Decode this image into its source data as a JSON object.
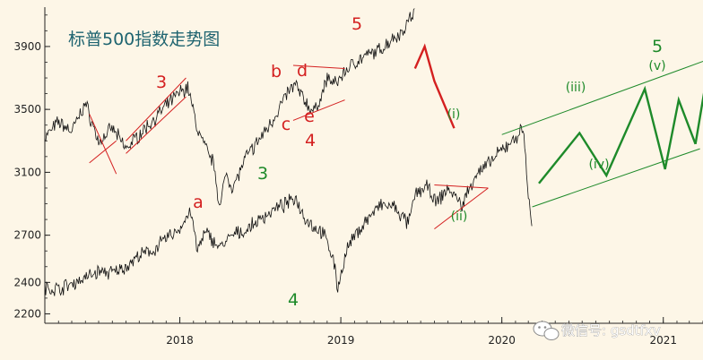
{
  "title": "标普500指数走势图",
  "watermark": "微信号: gsdtfxv",
  "watermark_icon": "wechat-icon",
  "colors": {
    "background": "#fdf6e7",
    "title": "#1e6470",
    "price": "#111111",
    "wave_red": "#d42020",
    "wave_green": "#1e8a2a"
  },
  "chart_data": {
    "type": "line",
    "title": "标普500指数走势图",
    "xlabel": "",
    "ylabel": "",
    "ylim": [
      2140,
      4150
    ],
    "xlim": [
      "2017-03-01",
      "2021-04-01"
    ],
    "yticks": [
      2200,
      2400,
      2700,
      3100,
      3500,
      3900
    ],
    "xticks": [
      "2018",
      "2019",
      "2020",
      "2021"
    ],
    "grid": false,
    "series": [
      {
        "id": "upper",
        "x": [
          "2017-03-01",
          "2017-04-01",
          "2017-05-01",
          "2017-06-01",
          "2017-07-01",
          "2017-08-01",
          "2017-09-01",
          "2017-10-01",
          "2017-11-01",
          "2017-12-01",
          "2018-01-01",
          "2018-01-20",
          "2018-02-09",
          "2018-03-01",
          "2018-03-20",
          "2018-04-02",
          "2018-04-15",
          "2018-05-01",
          "2018-06-01",
          "2018-07-01",
          "2018-08-01",
          "2018-09-01",
          "2018-09-20",
          "2018-10-01",
          "2018-10-20",
          "2018-11-01",
          "2018-11-20",
          "2018-12-01",
          "2018-12-20",
          "2019-01-10",
          "2019-02-01",
          "2019-03-01",
          "2019-04-01",
          "2019-05-01",
          "2019-05-20",
          "2019-06-01",
          "2019-06-18"
        ],
        "y": [
          3320,
          3420,
          3360,
          3540,
          3290,
          3380,
          3250,
          3340,
          3430,
          3520,
          3610,
          3640,
          3380,
          3250,
          3150,
          2860,
          3100,
          3000,
          3200,
          3310,
          3440,
          3600,
          3660,
          3600,
          3520,
          3480,
          3600,
          3700,
          3660,
          3740,
          3800,
          3840,
          3880,
          3960,
          3990,
          4060,
          4120
        ]
      },
      {
        "id": "lower",
        "x": [
          "2017-03-01",
          "2017-04-01",
          "2017-05-01",
          "2017-06-01",
          "2017-07-01",
          "2017-08-01",
          "2017-09-01",
          "2017-10-01",
          "2017-11-01",
          "2017-12-01",
          "2018-01-01",
          "2018-01-26",
          "2018-02-09",
          "2018-03-01",
          "2018-04-02",
          "2018-05-01",
          "2018-06-01",
          "2018-07-01",
          "2018-08-01",
          "2018-09-01",
          "2018-09-20",
          "2018-10-10",
          "2018-11-01",
          "2018-11-20",
          "2018-12-01",
          "2018-12-15",
          "2018-12-24",
          "2019-01-15",
          "2019-02-01",
          "2019-03-01",
          "2019-04-01",
          "2019-05-01",
          "2019-06-03",
          "2019-06-20",
          "2019-07-15",
          "2019-08-05",
          "2019-09-01",
          "2019-10-03",
          "2019-11-01",
          "2019-12-01",
          "2020-01-01",
          "2020-02-01",
          "2020-02-19",
          "2020-03-01",
          "2020-03-10"
        ],
        "y": [
          2360,
          2360,
          2390,
          2430,
          2470,
          2460,
          2500,
          2570,
          2600,
          2680,
          2740,
          2860,
          2600,
          2720,
          2620,
          2700,
          2730,
          2800,
          2860,
          2900,
          2940,
          2820,
          2750,
          2720,
          2650,
          2560,
          2360,
          2610,
          2690,
          2800,
          2890,
          2880,
          2770,
          2970,
          3010,
          2900,
          3000,
          2890,
          3080,
          3150,
          3240,
          3320,
          3380,
          2950,
          2760
        ]
      }
    ],
    "annotations": {
      "red_labels": [
        "3",
        "a",
        "b",
        "c",
        "d",
        "e",
        "4",
        "5"
      ],
      "green_labels": [
        "3",
        "4",
        "(i)",
        "(ii)",
        "(iii)",
        "(iv)",
        "(v)",
        "5"
      ],
      "projection_red": {
        "x": [
          "2019-06-18",
          "2019-07-10",
          "2019-08-01",
          "2019-09-15"
        ],
        "y": [
          3760,
          3900,
          3680,
          3380
        ]
      },
      "projection_green": {
        "x": [
          "2020-03-25",
          "2020-06-25",
          "2020-08-25",
          "2020-11-20",
          "2021-01-05",
          "2021-02-05",
          "2021-03-15"
        ],
        "y": [
          3030,
          3350,
          3080,
          3630,
          3120,
          3560,
          3280
        ]
      },
      "projection_green_tail": {
        "x": [
          "2021-03-15",
          "2021-04-15"
        ],
        "y": [
          3280,
          3800
        ]
      },
      "channel_green": {
        "upper": {
          "x": [
            "2020-01-01",
            "2021-04-15"
          ],
          "y": [
            3340,
            3820
          ]
        },
        "lower": {
          "x": [
            "2020-03-10",
            "2021-03-25"
          ],
          "y": [
            2880,
            3250
          ]
        }
      },
      "triangles_red": [
        {
          "x1": [
            "2017-06-10",
            "2017-08-10"
          ],
          "y1": [
            3470,
            3090
          ],
          "x2": [
            "2017-06-10",
            "2017-08-10"
          ],
          "y2": [
            3160,
            3300
          ]
        },
        {
          "x1": [
            "2017-09-01",
            "2018-01-15"
          ],
          "y1": [
            3300,
            3700
          ],
          "x2": [
            "2017-09-01",
            "2018-01-15"
          ],
          "y2": [
            3220,
            3580
          ]
        },
        {
          "x1": [
            "2018-09-15",
            "2019-01-10"
          ],
          "y1": [
            3780,
            3760
          ],
          "x2": [
            "2018-09-15",
            "2019-01-10"
          ],
          "y2": [
            3430,
            3560
          ]
        },
        {
          "x1": [
            "2019-08-01",
            "2019-12-01"
          ],
          "y1": [
            3020,
            3000
          ],
          "x2": [
            "2019-08-01",
            "2019-12-01"
          ],
          "y2": [
            2740,
            3000
          ]
        }
      ]
    }
  }
}
